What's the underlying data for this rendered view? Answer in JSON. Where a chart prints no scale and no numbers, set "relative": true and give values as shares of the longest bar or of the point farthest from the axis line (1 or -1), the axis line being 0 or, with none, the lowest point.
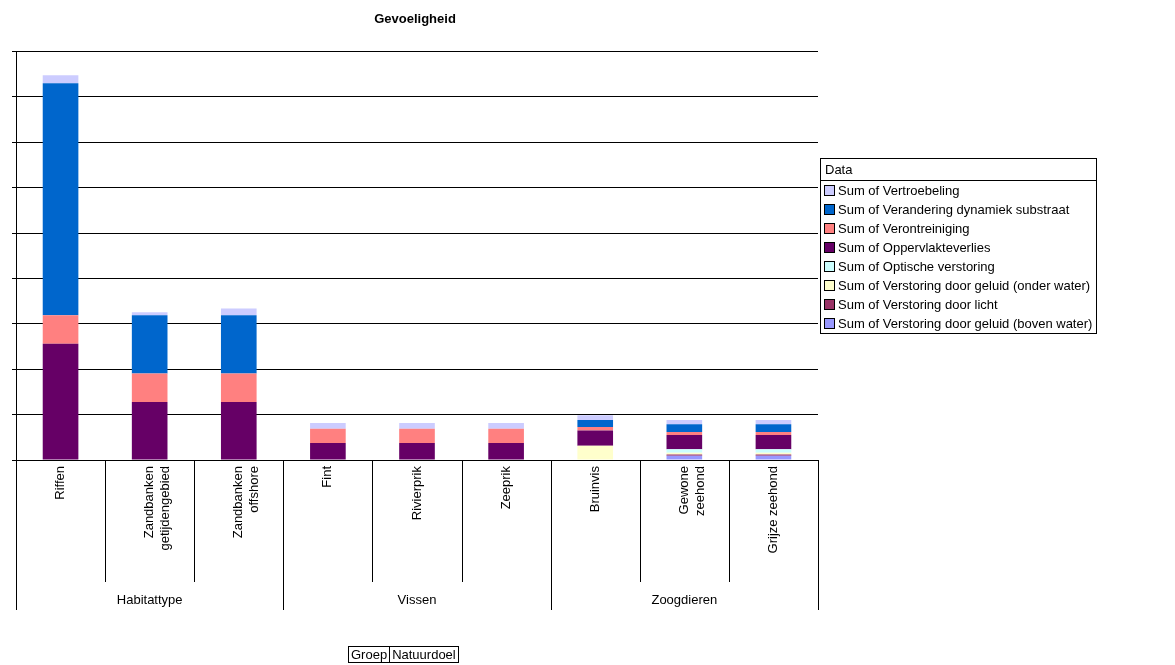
{
  "chart_data": {
    "type": "bar",
    "title": "Gevoeligheid",
    "legend_title": "Data",
    "stacked": true,
    "relative": true,
    "grid": "y",
    "legend": "right",
    "categories": [
      "Riffen",
      "Zandbanken getijdengebied",
      "Zandbanken offshore",
      "Fint",
      "Rivierprik",
      "Zeeprik",
      "Bruinvis",
      "Gewone zeehond",
      "Grijze zeehond"
    ],
    "annotations": [
      "Habitattype",
      "Vissen",
      "Zoogdieren",
      "Groep",
      "Natuurdoel"
    ],
    "series": [
      {
        "name": "Sum of Verstoring door geluid (boven water)",
        "color": "#9999ff",
        "values": [
          0,
          0,
          0,
          0,
          0,
          0,
          0,
          0.011,
          0.011
        ]
      },
      {
        "name": "Sum of Verstoring door licht",
        "color": "#993366",
        "values": [
          0,
          0,
          0,
          0,
          0,
          0,
          0,
          0.003,
          0.003
        ]
      },
      {
        "name": "Sum of Verstoring door geluid (onder water)",
        "color": "#ffffcc",
        "values": [
          0,
          0,
          0,
          0,
          0,
          0,
          0.037,
          0.005,
          0.005
        ]
      },
      {
        "name": "Sum of Optische verstoring",
        "color": "#ccffff",
        "values": [
          0,
          0,
          0,
          0,
          0,
          0,
          0,
          0.009,
          0.009
        ]
      },
      {
        "name": "Sum of Oppervlakteverlies",
        "color": "#660066",
        "values": [
          0.302,
          0.151,
          0.151,
          0.044,
          0.044,
          0.044,
          0.04,
          0.037,
          0.037
        ]
      },
      {
        "name": "Sum of Verontreiniging",
        "color": "#ff8080",
        "values": [
          0.074,
          0.074,
          0.074,
          0.037,
          0.037,
          0.037,
          0.009,
          0.008,
          0.008
        ]
      },
      {
        "name": "Sum of Verandering dynamiek substraat",
        "color": "#0066cc",
        "values": [
          0.603,
          0.151,
          0.151,
          0,
          0,
          0,
          0.018,
          0.02,
          0.02
        ]
      },
      {
        "name": "Sum of Vertroebeling",
        "color": "#ccccff",
        "values": [
          0.021,
          0.008,
          0.018,
          0.015,
          0.015,
          0.015,
          0.012,
          0.011,
          0.011
        ]
      }
    ]
  }
}
